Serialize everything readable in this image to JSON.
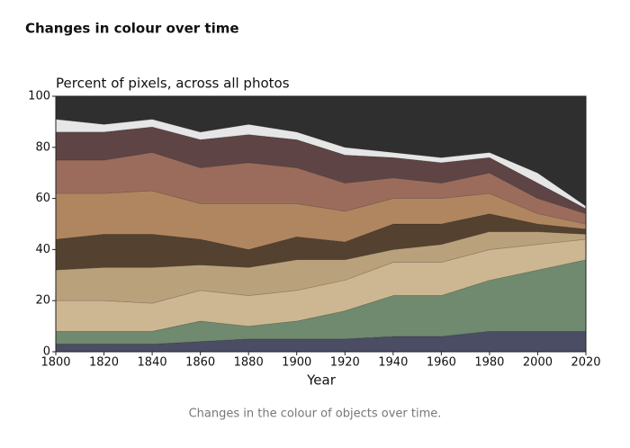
{
  "header": {
    "title": "Changes in colour over time"
  },
  "chart_data": {
    "type": "stacked_area",
    "subtitle": "Percent of pixels, across all photos",
    "x_label": "Year",
    "x": [
      1800,
      1820,
      1840,
      1860,
      1880,
      1900,
      1920,
      1940,
      1960,
      1980,
      2000,
      2020
    ],
    "xlim": [
      1800,
      2020
    ],
    "xticks": [
      1800,
      1820,
      1840,
      1860,
      1880,
      1900,
      1920,
      1940,
      1960,
      1980,
      2000,
      2020
    ],
    "ylim": [
      0,
      100
    ],
    "yticks": [
      0,
      20,
      40,
      60,
      80,
      100
    ],
    "series": [
      {
        "color": "#4a4d63",
        "values": [
          3,
          3,
          3,
          4,
          5,
          5,
          5,
          6,
          6,
          8,
          8,
          8
        ]
      },
      {
        "color": "#6f8a6e",
        "values": [
          5,
          5,
          5,
          8,
          5,
          7,
          11,
          16,
          16,
          20,
          24,
          28
        ]
      },
      {
        "color": "#cdb792",
        "values": [
          12,
          12,
          11,
          12,
          12,
          12,
          12,
          13,
          13,
          12,
          10,
          8
        ]
      },
      {
        "color": "#b9a17b",
        "values": [
          12,
          13,
          14,
          10,
          11,
          12,
          8,
          5,
          7,
          7,
          5,
          2
        ]
      },
      {
        "color": "#54412f",
        "values": [
          12,
          13,
          13,
          10,
          7,
          9,
          7,
          10,
          8,
          7,
          3,
          2
        ]
      },
      {
        "color": "#b08660",
        "values": [
          18,
          16,
          17,
          14,
          18,
          13,
          12,
          10,
          10,
          8,
          4,
          2
        ]
      },
      {
        "color": "#9b6c5c",
        "values": [
          13,
          13,
          15,
          14,
          16,
          14,
          11,
          8,
          6,
          8,
          6,
          4
        ]
      },
      {
        "color": "#5e4444",
        "values": [
          11,
          11,
          10,
          11,
          11,
          11,
          11,
          8,
          8,
          6,
          6,
          2
        ]
      },
      {
        "color": "#e6e6e6",
        "values": [
          5,
          3,
          3,
          3,
          4,
          3,
          3,
          2,
          2,
          2,
          4,
          1
        ]
      },
      {
        "color": "#2f2f2f",
        "values": [
          9,
          11,
          9,
          14,
          11,
          14,
          20,
          22,
          24,
          22,
          30,
          43
        ]
      }
    ]
  },
  "caption": "Changes in the colour of objects over time."
}
